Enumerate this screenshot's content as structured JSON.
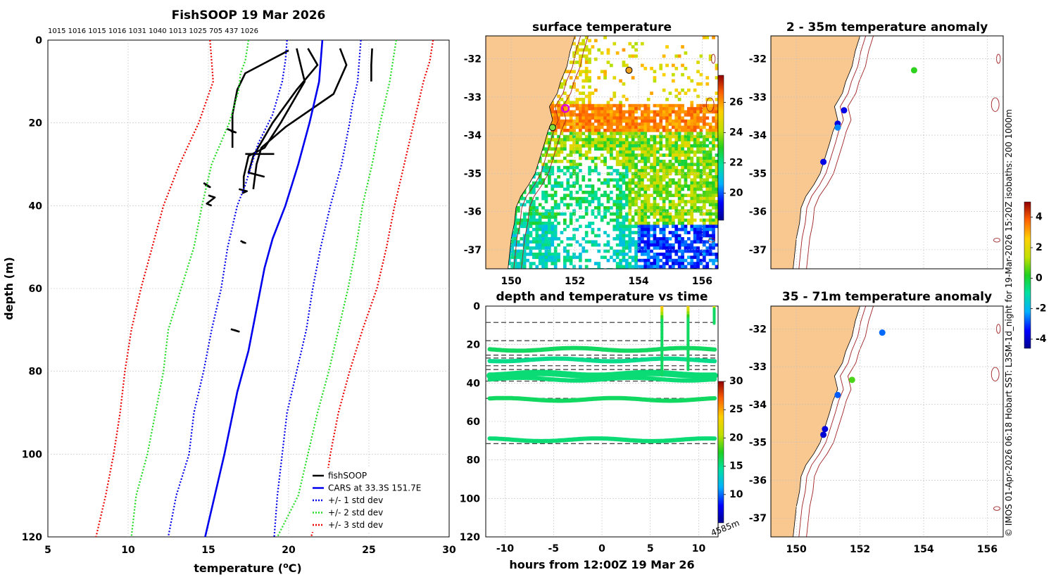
{
  "chart_data": [
    {
      "type": "line",
      "title": "FishSOOP 19 Mar 2026",
      "xlabel": "temperature (°C)",
      "ylabel": "depth (m)",
      "xlim": [
        5,
        30
      ],
      "ylim": [
        0,
        120
      ],
      "y_reversed": true,
      "xticks": [
        5,
        10,
        15,
        20,
        25,
        30
      ],
      "yticks": [
        0,
        20,
        40,
        60,
        80,
        100,
        120
      ],
      "top_labels": "1015 1016 1015 1016 1031 1040 1013 1025 705 437 1026",
      "legend_position": "bottom-right",
      "series": [
        {
          "name": "fishSOOP",
          "color": "#000000",
          "style": "solid",
          "points": [
            [
              20,
              2.5
            ],
            [
              17.3,
              8
            ],
            [
              16.8,
              12
            ],
            [
              16.5,
              18
            ],
            [
              16.5,
              22
            ],
            [
              16.5,
              26
            ]
          ]
        },
        {
          "name": "fishSOOP",
          "color": "#000000",
          "style": "solid",
          "points": [
            [
              20.5,
              2
            ],
            [
              21,
              10
            ],
            [
              19.5,
              20
            ],
            [
              18.5,
              26
            ],
            [
              17.5,
              28
            ],
            [
              17.2,
              33
            ],
            [
              17.2,
              36
            ]
          ]
        },
        {
          "name": "fishSOOP",
          "color": "#000000",
          "style": "solid",
          "points": [
            [
              21.2,
              2
            ],
            [
              21.8,
              6
            ],
            [
              20.5,
              12
            ],
            [
              19,
              20
            ],
            [
              17.8,
              28
            ],
            [
              17.5,
              32
            ],
            [
              18.5,
              33
            ]
          ]
        },
        {
          "name": "fishSOOP",
          "color": "#000000",
          "style": "solid",
          "points": [
            [
              23.2,
              2
            ],
            [
              23.6,
              6
            ],
            [
              22.8,
              13
            ],
            [
              19.8,
              21
            ],
            [
              18.3,
              26
            ],
            [
              18,
              30
            ],
            [
              17.8,
              36
            ]
          ]
        },
        {
          "name": "fishSOOP",
          "color": "#000000",
          "style": "solid",
          "points": [
            [
              25.2,
              2
            ],
            [
              25.15,
              6
            ],
            [
              25.15,
              10
            ]
          ]
        },
        {
          "name": "fishSOOP",
          "color": "#000000",
          "style": "solid",
          "points": [
            [
              17.3,
              27.5
            ],
            [
              19.1,
              27.5
            ]
          ]
        },
        {
          "name": "fishSOOP",
          "color": "#000000",
          "style": "solid",
          "points": [
            [
              16.5,
              22
            ],
            [
              16.2,
              21.5
            ],
            [
              16.7,
              22.3
            ],
            [
              16.4,
              22
            ]
          ]
        },
        {
          "name": "fishSOOP",
          "color": "#000000",
          "style": "solid",
          "points": [
            [
              14.7,
              34.5
            ],
            [
              15.1,
              35.5
            ],
            [
              14.8,
              35
            ]
          ]
        },
        {
          "name": "fishSOOP",
          "color": "#000000",
          "style": "solid",
          "points": [
            [
              15,
              37.5
            ],
            [
              15.4,
              38
            ],
            [
              14.9,
              39.5
            ],
            [
              15.2,
              40
            ]
          ]
        },
        {
          "name": "fishSOOP",
          "color": "#000000",
          "style": "solid",
          "points": [
            [
              16.9,
              36
            ],
            [
              17.4,
              36.5
            ],
            [
              17.1,
              37
            ]
          ]
        },
        {
          "name": "fishSOOP",
          "color": "#000000",
          "style": "solid",
          "points": [
            [
              17,
              48.5
            ],
            [
              17.3,
              49
            ],
            [
              17.1,
              48.8
            ]
          ]
        },
        {
          "name": "fishSOOP",
          "color": "#000000",
          "style": "solid",
          "points": [
            [
              16.4,
              69.8
            ],
            [
              16.9,
              70.4
            ],
            [
              16.6,
              70
            ]
          ]
        },
        {
          "name": "CARS at 33.3S 151.7E",
          "color": "#0000ee",
          "style": "solid",
          "points": [
            [
              22.1,
              0
            ],
            [
              22,
              5
            ],
            [
              21.9,
              10
            ],
            [
              21.6,
              15
            ],
            [
              21.3,
              20
            ],
            [
              20.6,
              30
            ],
            [
              19.8,
              40
            ],
            [
              19,
              48
            ],
            [
              18.5,
              55
            ],
            [
              18,
              65
            ],
            [
              17.5,
              75
            ],
            [
              16.8,
              85
            ],
            [
              16,
              100
            ],
            [
              15.4,
              110
            ],
            [
              14.8,
              120
            ]
          ]
        },
        {
          "name": "+/- 1 std dev",
          "color": "#0000ee",
          "style": "dotted",
          "points": [
            [
              19.9,
              0
            ],
            [
              19.8,
              5
            ],
            [
              19.6,
              10
            ],
            [
              19,
              18
            ],
            [
              18.1,
              25
            ],
            [
              17.3,
              35
            ],
            [
              16.8,
              40
            ],
            [
              16.2,
              50
            ],
            [
              15.8,
              60
            ],
            [
              15.2,
              70
            ],
            [
              14.7,
              80
            ],
            [
              14.1,
              90
            ],
            [
              13.8,
              100
            ],
            [
              13,
              110
            ],
            [
              12.5,
              120
            ]
          ]
        },
        {
          "name": "+/- 1 std dev",
          "color": "#0000ee",
          "style": "dotted",
          "points": [
            [
              24.5,
              0
            ],
            [
              24.4,
              5
            ],
            [
              24.3,
              10
            ],
            [
              24,
              15
            ],
            [
              23.8,
              20
            ],
            [
              23.3,
              30
            ],
            [
              22.6,
              40
            ],
            [
              22,
              50
            ],
            [
              21.5,
              60
            ],
            [
              21.1,
              70
            ],
            [
              20.5,
              80
            ],
            [
              19.9,
              90
            ],
            [
              19.6,
              100
            ],
            [
              19.3,
              110
            ],
            [
              19.1,
              120
            ]
          ]
        },
        {
          "name": "+/- 2 std dev",
          "color": "#22dd22",
          "style": "dotted",
          "points": [
            [
              17.5,
              0
            ],
            [
              17.3,
              5
            ],
            [
              17,
              8
            ],
            [
              16.9,
              12
            ],
            [
              16.3,
              20
            ],
            [
              15.2,
              30
            ],
            [
              14.6,
              40
            ],
            [
              14.1,
              50
            ],
            [
              13.3,
              60
            ],
            [
              12.5,
              70
            ],
            [
              12.2,
              80
            ],
            [
              11.7,
              90
            ],
            [
              11.2,
              100
            ],
            [
              10.5,
              110
            ],
            [
              10.2,
              120
            ]
          ]
        },
        {
          "name": "+/- 2 std dev",
          "color": "#22dd22",
          "style": "dotted",
          "points": [
            [
              26.7,
              0
            ],
            [
              26.5,
              5
            ],
            [
              26.3,
              10
            ],
            [
              26,
              15
            ],
            [
              25.7,
              20
            ],
            [
              25.2,
              30
            ],
            [
              24.6,
              40
            ],
            [
              24.2,
              50
            ],
            [
              23.7,
              60
            ],
            [
              23.1,
              70
            ],
            [
              22.5,
              80
            ],
            [
              21.8,
              90
            ],
            [
              21.2,
              100
            ],
            [
              20.6,
              110
            ],
            [
              19.3,
              120
            ]
          ]
        },
        {
          "name": "+/- 3 std dev",
          "color": "#ee0000",
          "style": "dotted",
          "points": [
            [
              15.1,
              0
            ],
            [
              15.2,
              5
            ],
            [
              15.3,
              10
            ],
            [
              14.4,
              20
            ],
            [
              13.2,
              30
            ],
            [
              12.2,
              40
            ],
            [
              11.5,
              50
            ],
            [
              10.8,
              60
            ],
            [
              10.2,
              70
            ],
            [
              9.8,
              80
            ],
            [
              9.5,
              90
            ],
            [
              9.1,
              100
            ],
            [
              8.6,
              110
            ],
            [
              8,
              120
            ]
          ]
        },
        {
          "name": "+/- 3 std dev",
          "color": "#ee0000",
          "style": "dotted",
          "points": [
            [
              29,
              0
            ],
            [
              28.8,
              5
            ],
            [
              28.4,
              10
            ],
            [
              28.1,
              15
            ],
            [
              27.8,
              20
            ],
            [
              27.2,
              30
            ],
            [
              26.6,
              40
            ],
            [
              26.1,
              50
            ],
            [
              25.5,
              60
            ],
            [
              24.6,
              70
            ],
            [
              23.8,
              80
            ],
            [
              23.1,
              90
            ],
            [
              22.6,
              100
            ],
            [
              22.2,
              110
            ],
            [
              21.4,
              120
            ]
          ]
        }
      ],
      "legend": [
        {
          "label": "fishSOOP",
          "color": "#000000",
          "style": "solid"
        },
        {
          "label": "CARS at 33.3S 151.7E",
          "color": "#0000ee",
          "style": "solid"
        },
        {
          "label": "+/- 1 std dev",
          "color": "#0000ee",
          "style": "dotted"
        },
        {
          "label": "+/- 2 std dev",
          "color": "#22dd22",
          "style": "dotted"
        },
        {
          "label": "+/- 3 std dev",
          "color": "#ee0000",
          "style": "dotted"
        }
      ]
    },
    {
      "type": "heatmap",
      "title": "surface temperature",
      "xlim": [
        149.2,
        156.5
      ],
      "ylim": [
        -37.5,
        -31.4
      ],
      "xticks": [
        150,
        152,
        154,
        156
      ],
      "yticks": [
        -32,
        -33,
        -34,
        -35,
        -36,
        -37
      ],
      "colorbar_ticks": [
        20,
        22,
        24,
        26
      ],
      "colorbar_range": [
        18.2,
        27.8
      ],
      "markers": [
        {
          "lon": 153.7,
          "lat": -32.3,
          "value": 26,
          "color": "#f0a020"
        },
        {
          "lon": 151.7,
          "lat": -33.3,
          "value": 27,
          "color": "#e000e0"
        },
        {
          "lon": 151.3,
          "lat": -33.8,
          "value": 22,
          "color": "#80e040"
        }
      ]
    },
    {
      "type": "scatter",
      "title": "depth and temperature vs time",
      "xlabel": "hours from 12:00Z 19 Mar 26",
      "xlim": [
        -12,
        12
      ],
      "ylim": [
        0,
        120
      ],
      "y_reversed": true,
      "xticks": [
        -10,
        -5,
        0,
        5,
        10
      ],
      "yticks": [
        0,
        20,
        40,
        60,
        80,
        100,
        120
      ],
      "colorbar_ticks": [
        10,
        15,
        20,
        25,
        30
      ],
      "colorbar_range": [
        5,
        30
      ],
      "corner_label": "4585m",
      "dashed_depths": [
        8.5,
        18,
        25.5,
        27,
        31,
        33,
        39,
        48,
        71.5
      ],
      "series": [
        {
          "name": "track 22m",
          "base_depth": 22.5,
          "temp": 16
        },
        {
          "name": "track 28m",
          "base_depth": 28,
          "temp": 15
        },
        {
          "name": "track 35m",
          "base_depth": 35.5,
          "temp": 15.5
        },
        {
          "name": "track 38m",
          "base_depth": 38,
          "temp": 15.5
        },
        {
          "name": "track 48m",
          "base_depth": 48.5,
          "temp": 16
        },
        {
          "name": "track 70m",
          "base_depth": 69.5,
          "temp": 15.5
        }
      ],
      "casts": [
        {
          "hour": 6.2,
          "depth_range": [
            0,
            36
          ],
          "surface_temp": 24
        },
        {
          "hour": 8.9,
          "depth_range": [
            0,
            33
          ],
          "surface_temp": 23
        },
        {
          "hour": 11.6,
          "depth_range": [
            0,
            9
          ],
          "surface_temp": 24.5
        }
      ]
    },
    {
      "type": "scatter",
      "title": "2 - 35m temperature anomaly",
      "xlim": [
        149.2,
        156.5
      ],
      "ylim": [
        -37.5,
        -31.4
      ],
      "xticks": [
        150,
        152,
        154,
        156
      ],
      "yticks": [
        -32,
        -33,
        -34,
        -35,
        -36,
        -37
      ],
      "points": [
        {
          "lon": 153.7,
          "lat": -32.3,
          "anomaly": 0.3
        },
        {
          "lon": 151.5,
          "lat": -33.35,
          "anomaly": -3.7
        },
        {
          "lon": 151.3,
          "lat": -33.7,
          "anomaly": -3.8
        },
        {
          "lon": 151.3,
          "lat": -33.8,
          "anomaly": -2.5
        },
        {
          "lon": 150.85,
          "lat": -34.7,
          "anomaly": -3.7
        }
      ]
    },
    {
      "type": "scatter",
      "title": "35 - 71m temperature anomaly",
      "xlim": [
        149.2,
        156.5
      ],
      "ylim": [
        -37.5,
        -31.4
      ],
      "xticks": [
        150,
        152,
        154,
        156
      ],
      "yticks": [
        -32,
        -33,
        -34,
        -35,
        -36,
        -37
      ],
      "points": [
        {
          "lon": 152.7,
          "lat": -32.1,
          "anomaly": -2.7
        },
        {
          "lon": 151.75,
          "lat": -33.35,
          "anomaly": 0.5
        },
        {
          "lon": 151.3,
          "lat": -33.75,
          "anomaly": -2.8
        },
        {
          "lon": 150.9,
          "lat": -34.65,
          "anomaly": -3.8
        },
        {
          "lon": 150.85,
          "lat": -34.8,
          "anomaly": -3.9
        }
      ]
    }
  ],
  "anomaly_colorbar": {
    "ticks": [
      -4,
      -2,
      0,
      2,
      4
    ],
    "range": [
      -4.6,
      5
    ]
  },
  "side_text": "© IMOS 01-Apr-2026 06:18 Hobart SST: L3SM-1d_night for 19-Mar-2026 15:20Z isobaths: 200  1000m",
  "colors": {
    "land": "#f8c890",
    "isobath": "#a02020",
    "grid": "#c0c0c0"
  }
}
